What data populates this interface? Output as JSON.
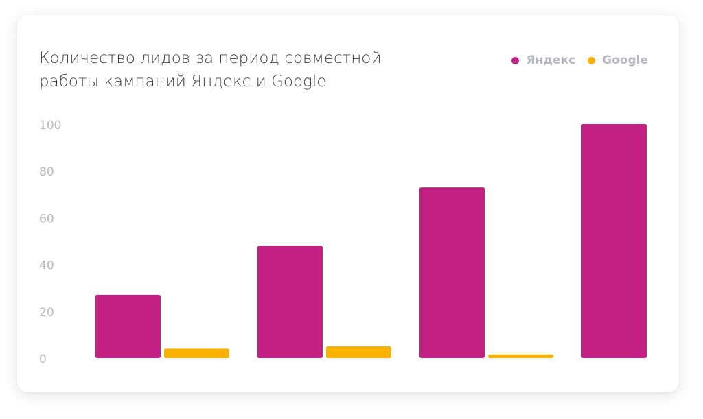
{
  "chart_data": {
    "type": "bar",
    "title": "Количество лидов за период совместной работы кампаний Яндекс и Google",
    "title_lines": [
      "Количество лидов за период совместной",
      "работы кампаний Яндекс и Google"
    ],
    "categories": [
      "",
      "",
      "",
      ""
    ],
    "series": [
      {
        "name": "Яндекс",
        "color": "#c22183",
        "values": [
          27,
          48,
          73,
          100
        ]
      },
      {
        "name": "Google",
        "color": "#fbb100",
        "values": [
          4,
          5,
          1.5,
          0
        ]
      }
    ],
    "ylim": [
      0,
      100
    ],
    "yticks": [
      "0",
      "20",
      "40",
      "60",
      "80",
      "100"
    ],
    "xlabel": "",
    "ylabel": "",
    "grid": false,
    "legend_position": "top-right"
  }
}
